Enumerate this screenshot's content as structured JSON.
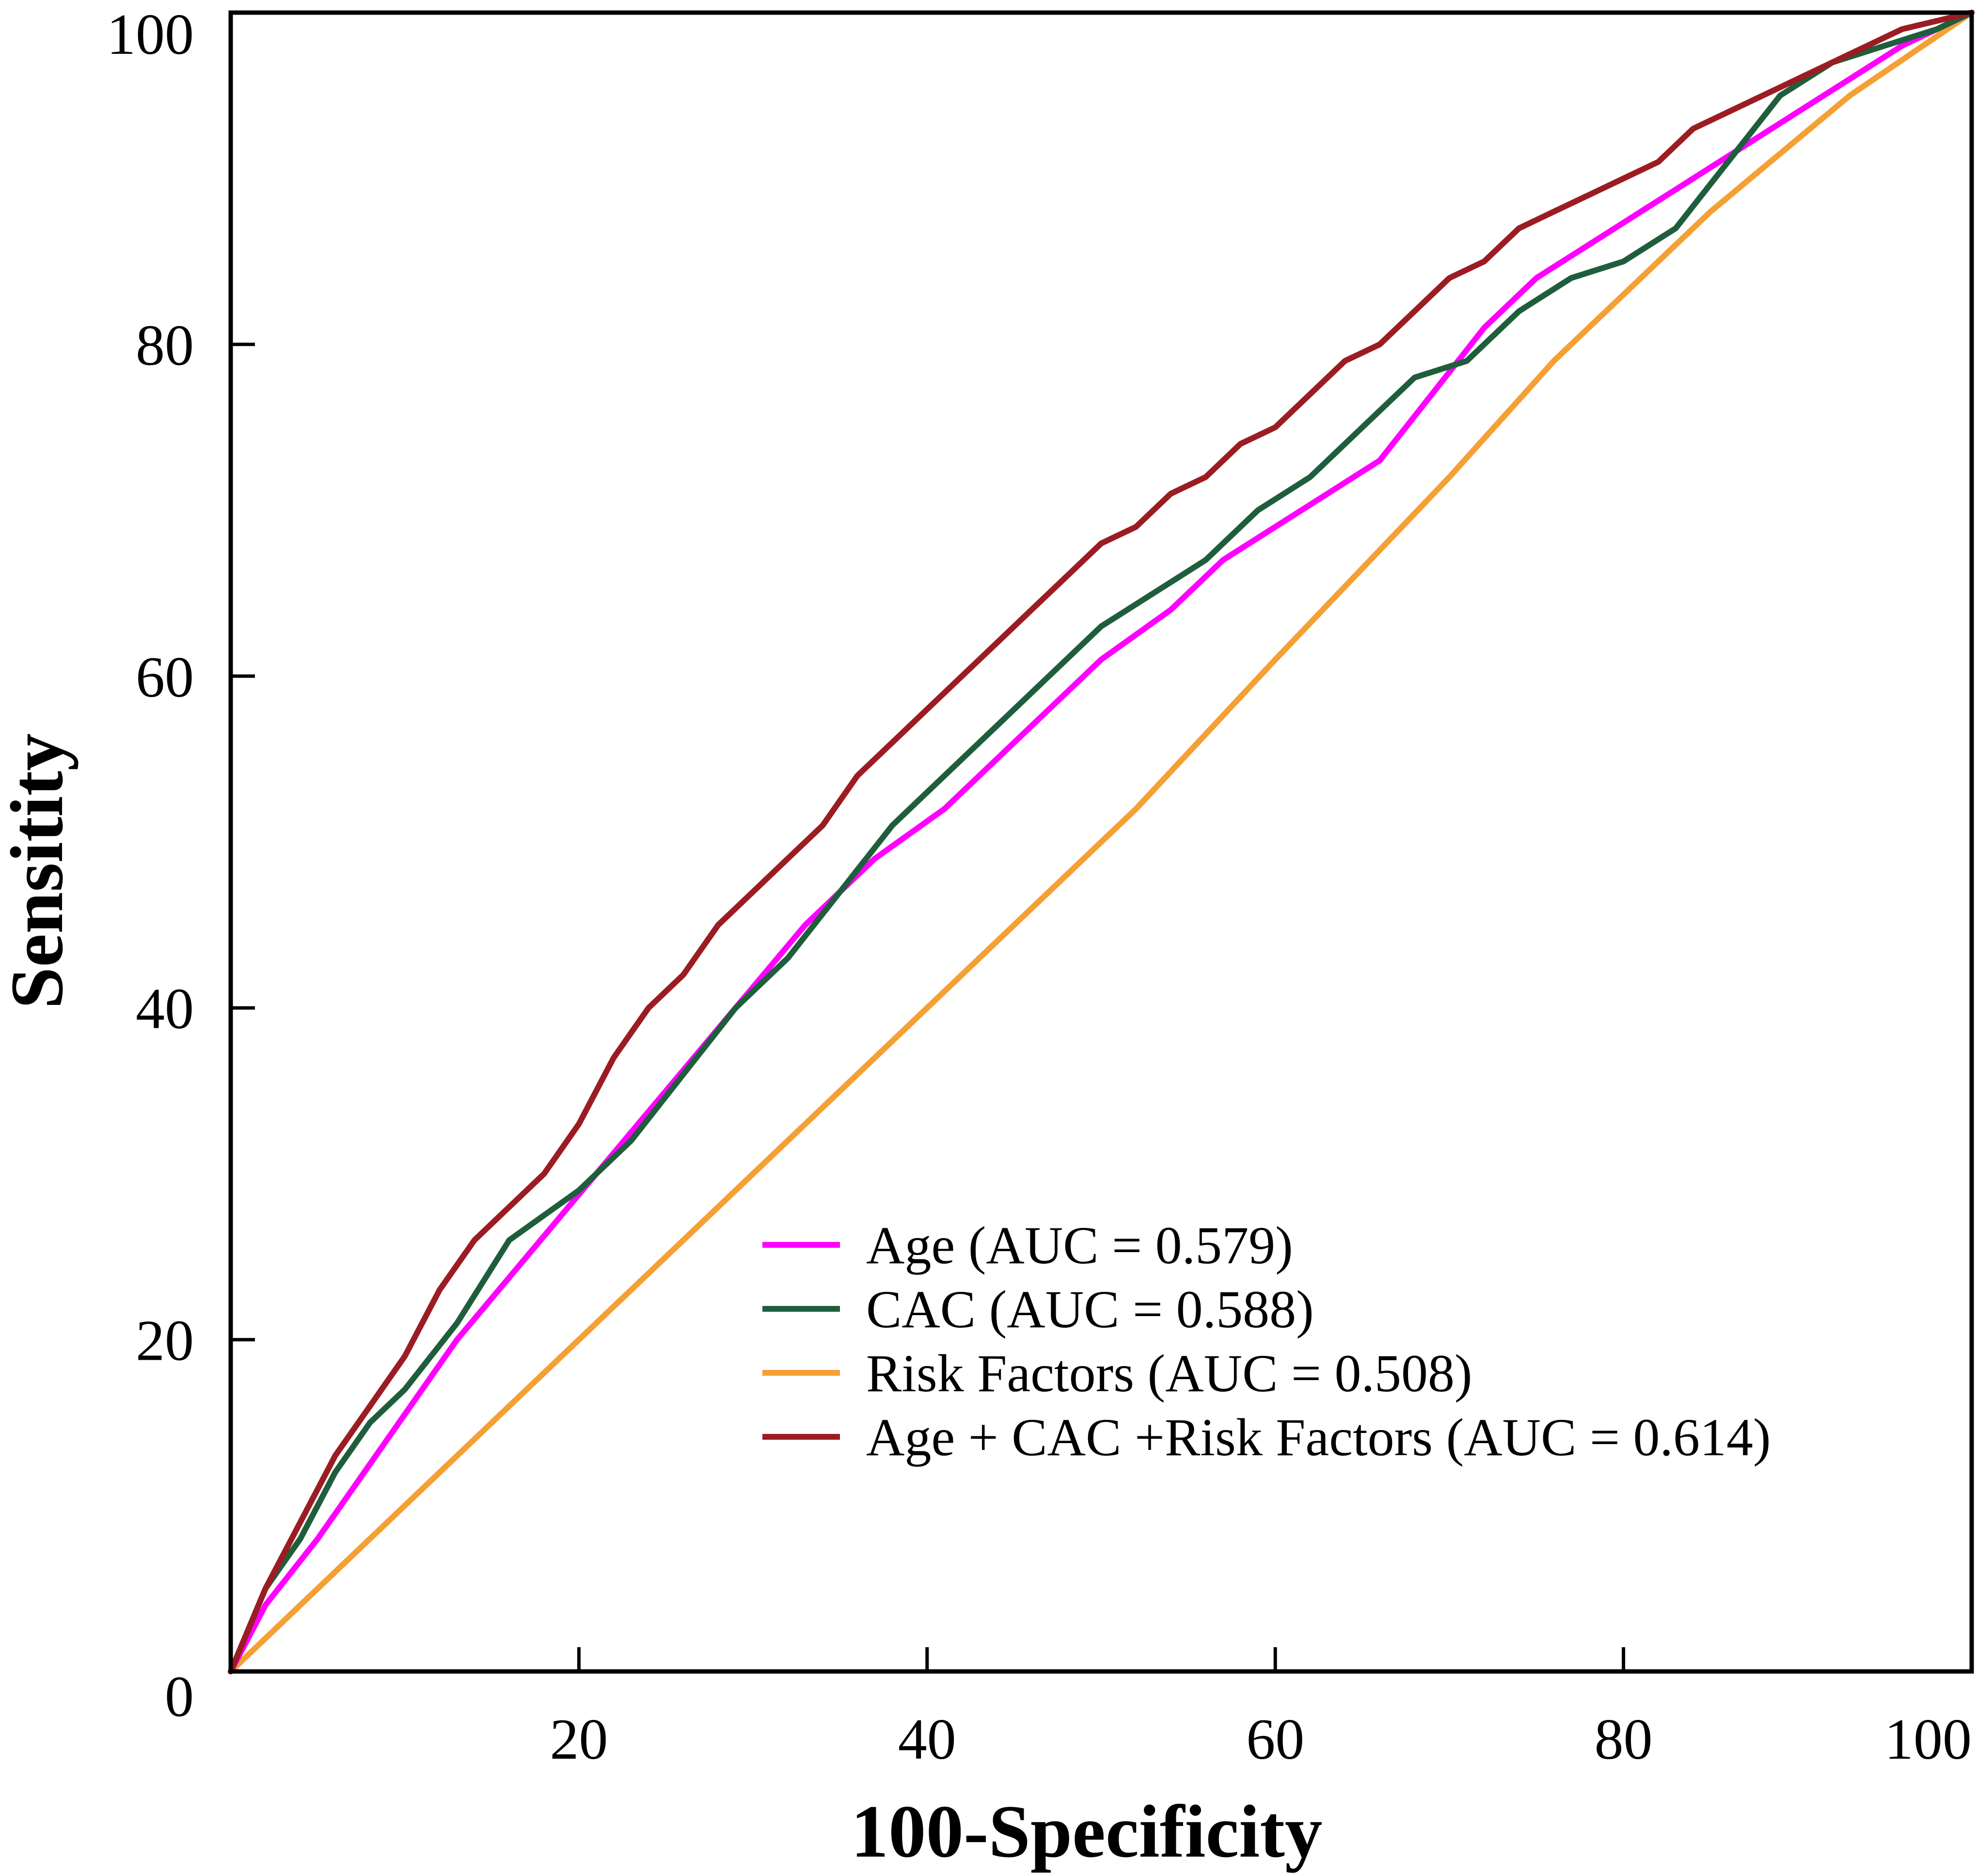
{
  "chart_data": {
    "type": "line",
    "title": "",
    "xlabel": "100-Specificity",
    "ylabel": "Sensitity",
    "xlim": [
      0,
      100
    ],
    "ylim": [
      0,
      100
    ],
    "x_ticks": [
      20,
      40,
      60,
      80,
      100
    ],
    "y_ticks": [
      0,
      20,
      40,
      60,
      80,
      100
    ],
    "grid": false,
    "legend_position": "lower-right",
    "series": [
      {
        "name": "Age (AUC = 0.579)",
        "color": "#ff00ff",
        "x": [
          0,
          2,
          5,
          9,
          13,
          17,
          21,
          25,
          29,
          33,
          37,
          41,
          45,
          49,
          50,
          54,
          57,
          60,
          63,
          66,
          69,
          72,
          75,
          78,
          81,
          84,
          87,
          90,
          93,
          96,
          100
        ],
        "y": [
          0,
          4,
          8,
          14,
          20,
          25,
          30,
          35,
          40,
          45,
          49,
          52,
          56,
          60,
          61,
          64,
          67,
          69,
          71,
          73,
          77,
          81,
          84,
          86,
          88,
          90,
          92,
          94,
          96,
          98,
          100
        ]
      },
      {
        "name": "CAC (AUC = 0.588)",
        "color": "#1f5e3c",
        "x": [
          0,
          2,
          4,
          6,
          8,
          10,
          13,
          16,
          20,
          23,
          26,
          29,
          32,
          35,
          38,
          41,
          44,
          47,
          50,
          53,
          56,
          59,
          62,
          65,
          68,
          71,
          74,
          77,
          80,
          83,
          86,
          89,
          92,
          95,
          98,
          100
        ],
        "y": [
          0,
          5,
          8,
          12,
          15,
          17,
          21,
          26,
          29,
          32,
          36,
          40,
          43,
          47,
          51,
          54,
          57,
          60,
          63,
          65,
          67,
          70,
          72,
          75,
          78,
          79,
          82,
          84,
          85,
          87,
          91,
          95,
          97,
          98,
          99,
          100
        ]
      },
      {
        "name": "Risk Factors (AUC = 0.508)",
        "color": "#f5a034",
        "x": [
          0,
          10,
          20,
          30,
          40,
          52,
          60,
          70,
          76,
          85,
          93,
          100
        ],
        "y": [
          0,
          10,
          20,
          30,
          40,
          52,
          61,
          72,
          79,
          88,
          95,
          100
        ]
      },
      {
        "name": "Age + CAC +Risk Factors (AUC = 0.614)",
        "color": "#9b1c22",
        "x": [
          0,
          2,
          4,
          6,
          8,
          10,
          12,
          14,
          16,
          18,
          20,
          22,
          24,
          26,
          28,
          30,
          32,
          34,
          36,
          38,
          40,
          42,
          44,
          46,
          48,
          50,
          52,
          54,
          56,
          58,
          60,
          62,
          64,
          66,
          68,
          70,
          72,
          74,
          76,
          78,
          80,
          82,
          84,
          86,
          88,
          90,
          92,
          94,
          96,
          98,
          100
        ],
        "y": [
          0,
          5,
          9,
          13,
          16,
          19,
          23,
          26,
          28,
          30,
          33,
          37,
          40,
          42,
          45,
          47,
          49,
          51,
          54,
          56,
          58,
          60,
          62,
          64,
          66,
          68,
          69,
          71,
          72,
          74,
          75,
          77,
          79,
          80,
          82,
          84,
          85,
          87,
          88,
          89,
          90,
          91,
          93,
          94,
          95,
          96,
          97,
          98,
          99,
          99.5,
          100
        ]
      }
    ]
  }
}
